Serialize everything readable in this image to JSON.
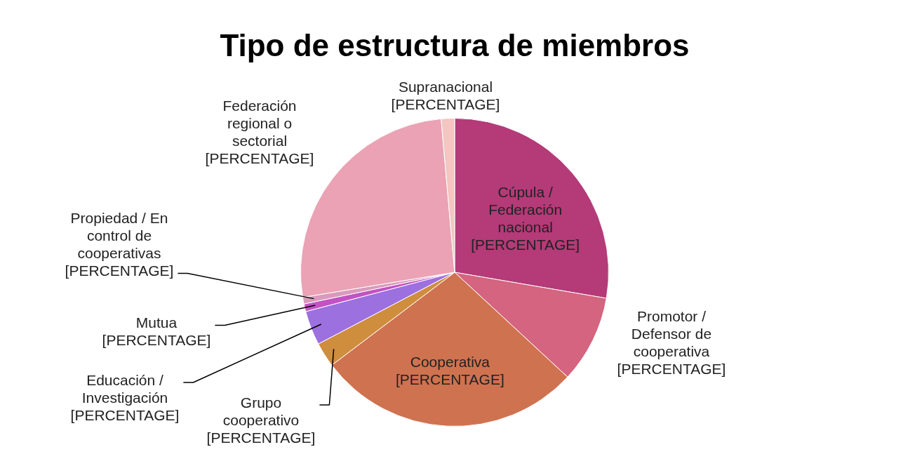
{
  "chart_data": {
    "type": "pie",
    "title": "Tipo de estructura de miembros",
    "categories": [
      "Cúpula / Federación nacional",
      "Promotor / Defensor de cooperativa",
      "Cooperativa",
      "Grupo cooperativo",
      "Educación / Investigación",
      "Mutua",
      "Propiedad / En control de cooperativas",
      "Federación regional o sectorial",
      "Supranacional"
    ],
    "values": [
      27.7,
      9.2,
      27.8,
      2.6,
      3.6,
      0.8,
      0.7,
      26.2,
      1.4
    ],
    "colors": [
      "#b43a78",
      "#d4647f",
      "#cf7250",
      "#cf8d3e",
      "#9d70e0",
      "#c352c4",
      "#d99abb",
      "#eaa2b4",
      "#f3c6c2"
    ],
    "value_labels": [
      "[PERCENTAGE]",
      "[PERCENTAGE]",
      "[PERCENTAGE]",
      "[PERCENTAGE]",
      "[PERCENTAGE]",
      "[PERCENTAGE]",
      "[PERCENTAGE]",
      "[PERCENTAGE]",
      "[PERCENTAGE]"
    ],
    "legend": false
  }
}
